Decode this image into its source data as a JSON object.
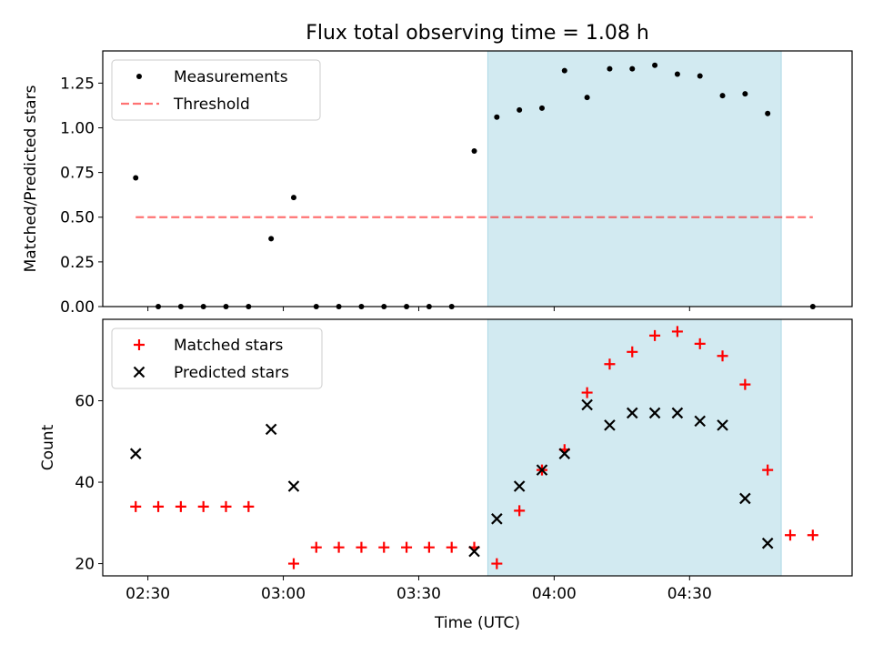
{
  "chart_data": {
    "title": "Flux total observing time = 1.08 h",
    "xlabel": "Time (UTC)",
    "x_unit": "minutes after 00:00 UTC",
    "xlim": [
      140,
      306
    ],
    "x_ticks": [
      {
        "value": 150,
        "label": "02:30"
      },
      {
        "value": 180,
        "label": "03:00"
      },
      {
        "value": 210,
        "label": "03:30"
      },
      {
        "value": 240,
        "label": "04:00"
      },
      {
        "value": 270,
        "label": "04:30"
      }
    ],
    "highlight_span": {
      "x0": 225.3,
      "x1": 290.3,
      "color": "#add8e6"
    },
    "panels": [
      {
        "type": "scatter",
        "ylabel": "Matched/Predicted stars",
        "ylim": [
          0,
          1.43
        ],
        "y_ticks": [
          {
            "value": 0,
            "label": "0.00"
          },
          {
            "value": 0.25,
            "label": "0.25"
          },
          {
            "value": 0.5,
            "label": "0.50"
          },
          {
            "value": 0.75,
            "label": "0.75"
          },
          {
            "value": 1.0,
            "label": "1.00"
          },
          {
            "value": 1.25,
            "label": "1.25"
          }
        ],
        "legend_position": "top-left",
        "series": [
          {
            "name": "Measurements",
            "marker": "dot",
            "color": "#000000",
            "x": [
              147.3,
              152.3,
              157.3,
              162.3,
              167.3,
              172.3,
              177.3,
              182.3,
              187.3,
              192.3,
              197.3,
              202.3,
              207.3,
              212.3,
              217.3,
              222.3,
              227.3,
              232.3,
              237.3,
              242.3,
              247.3,
              252.3,
              257.3,
              262.3,
              267.3,
              272.3,
              277.3,
              282.3,
              287.3,
              292.3,
              297.3
            ],
            "y": [
              0.72,
              0.0,
              0.0,
              0.0,
              0.0,
              0.0,
              0.38,
              0.61,
              0.0,
              0.0,
              0.0,
              0.0,
              0.0,
              0.0,
              0.0,
              0.87,
              1.06,
              1.1,
              1.11,
              1.32,
              1.17,
              1.33,
              1.33,
              1.35,
              1.3,
              1.29,
              1.18,
              1.19,
              1.08,
              null,
              0.0
            ]
          },
          {
            "name": "Threshold",
            "marker": "dashed-line",
            "color": "#ff0000",
            "x": [
              147.3,
              297.3
            ],
            "y": [
              0.5,
              0.5
            ]
          }
        ]
      },
      {
        "type": "scatter",
        "ylabel": "Count",
        "ylim": [
          17,
          80
        ],
        "y_ticks": [
          {
            "value": 20,
            "label": "20"
          },
          {
            "value": 40,
            "label": "40"
          },
          {
            "value": 60,
            "label": "60"
          }
        ],
        "legend_position": "top-left",
        "series": [
          {
            "name": "Matched stars",
            "marker": "plus",
            "color": "#ff0000",
            "x": [
              147.3,
              152.3,
              157.3,
              162.3,
              167.3,
              172.3,
              177.3,
              182.3,
              187.3,
              192.3,
              197.3,
              202.3,
              207.3,
              212.3,
              217.3,
              222.3,
              227.3,
              232.3,
              237.3,
              242.3,
              247.3,
              252.3,
              257.3,
              262.3,
              267.3,
              272.3,
              277.3,
              282.3,
              287.3,
              292.3,
              297.3
            ],
            "y": [
              34,
              34,
              34,
              34,
              34,
              34,
              null,
              20,
              24,
              24,
              24,
              24,
              24,
              24,
              24,
              24,
              20,
              33,
              43,
              48,
              62,
              69,
              72,
              76,
              77,
              74,
              71,
              64,
              43,
              27,
              27
            ]
          },
          {
            "name": "Predicted stars",
            "marker": "x",
            "color": "#000000",
            "x": [
              147.3,
              177.3,
              182.3,
              222.3,
              227.3,
              232.3,
              237.3,
              242.3,
              247.3,
              252.3,
              257.3,
              262.3,
              267.3,
              272.3,
              277.3,
              282.3,
              287.3,
              292.3
            ],
            "y": [
              47,
              53,
              39,
              23,
              31,
              39,
              43,
              47,
              59,
              54,
              57,
              57,
              57,
              55,
              54,
              36,
              25,
              null
            ]
          }
        ]
      }
    ]
  }
}
